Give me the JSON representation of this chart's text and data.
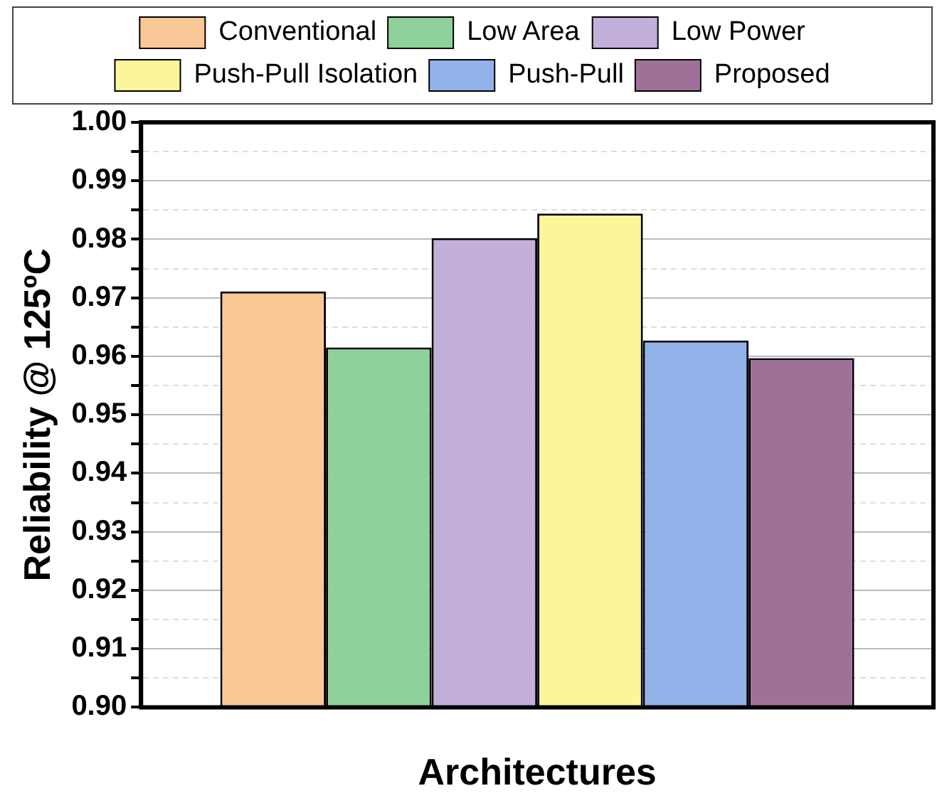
{
  "chart_data": {
    "type": "bar",
    "xlabel": "Architectures",
    "ylabel": "Reliability @ 125ºC",
    "categories": [
      null
    ],
    "series": [
      {
        "name": "Conventional",
        "color": "#f9c896",
        "values": [
          0.9711
        ]
      },
      {
        "name": "Low Area",
        "color": "#8fd19a",
        "values": [
          0.9615
        ]
      },
      {
        "name": "Low Power",
        "color": "#c2b0da",
        "values": [
          0.9802
        ]
      },
      {
        "name": "Push-Pull Isolation",
        "color": "#fdf59a",
        "values": [
          0.9844
        ]
      },
      {
        "name": "Push-Pull",
        "color": "#92b3ea",
        "values": [
          0.9627
        ]
      },
      {
        "name": "Proposed",
        "color": "#a07198",
        "values": [
          0.9597
        ]
      }
    ],
    "ylim": [
      0.9,
      1.0
    ],
    "yticks": [
      {
        "value": 0.9,
        "label": "0.90"
      },
      {
        "value": 0.905,
        "label": null
      },
      0.91,
      {
        "value": 0.915,
        "label": null
      },
      0.92,
      {
        "value": 0.925,
        "label": null
      },
      0.93,
      {
        "value": 0.935,
        "label": null
      },
      0.94,
      {
        "value": 0.945,
        "label": null
      },
      0.95,
      {
        "value": 0.955,
        "label": null
      },
      0.96,
      {
        "value": 0.965,
        "label": null
      },
      0.97,
      {
        "value": 0.975,
        "label": null
      },
      0.98,
      {
        "value": 0.985,
        "label": null
      },
      0.99,
      {
        "value": 0.995,
        "label": null
      },
      {
        "value": 1.0,
        "label": "1.00"
      }
    ],
    "grid": "y",
    "legend": "top"
  }
}
